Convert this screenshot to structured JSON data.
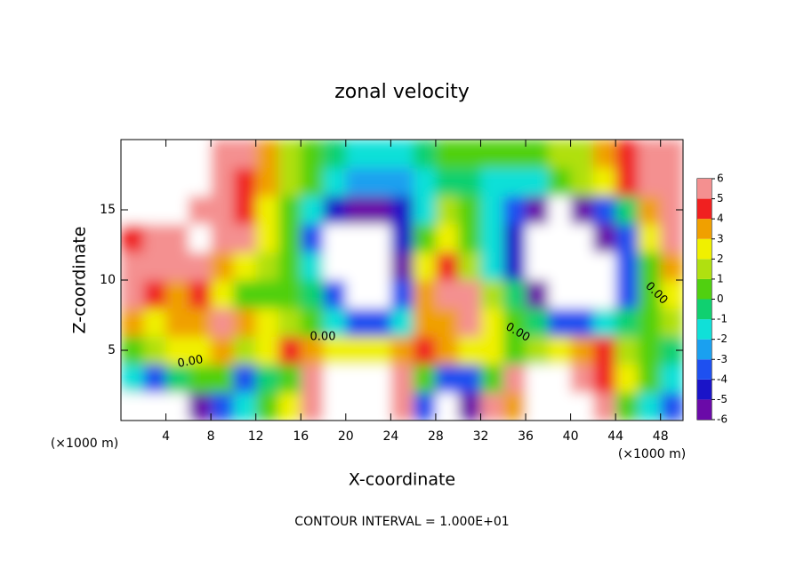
{
  "chart_data": {
    "type": "contour",
    "title": "zonal velocity",
    "x_label": "X-coordinate",
    "y_label": "Z-coordinate",
    "x_unit": "(×1000 m)",
    "y_unit": "(×1000 m)",
    "footer": "CONTOUR INTERVAL = 1.000E+01",
    "contour_labels": [
      "0.00",
      "0.00",
      "0.00",
      "0.00"
    ],
    "xlim": [
      0,
      50
    ],
    "ylim": [
      0,
      20
    ],
    "xticks": [
      4,
      8,
      12,
      16,
      20,
      24,
      28,
      32,
      36,
      40,
      44,
      48
    ],
    "yticks": [
      5,
      10,
      15
    ],
    "x": [
      1,
      3,
      5,
      7,
      9,
      11,
      13,
      15,
      17,
      19,
      21,
      23,
      25,
      27,
      29,
      31,
      33,
      35,
      37,
      39,
      41,
      43,
      45,
      47,
      49
    ],
    "y": [
      1,
      3,
      5,
      7,
      9,
      11,
      13,
      15,
      17,
      19
    ],
    "z": [
      [
        -8,
        -8,
        -8,
        -6,
        -4,
        -2,
        0,
        2,
        5,
        8,
        8,
        8,
        5,
        -4,
        -8,
        -6,
        5,
        3,
        8,
        8,
        8,
        6,
        0,
        -2,
        -4
      ],
      [
        -2,
        -4,
        -1,
        0,
        0,
        -4,
        -1,
        0,
        5,
        8,
        8,
        8,
        5,
        0,
        -4,
        -4,
        0,
        5,
        8,
        8,
        6,
        4,
        2,
        0,
        -2
      ],
      [
        0,
        1,
        2,
        2,
        3,
        1,
        2,
        4,
        3,
        2,
        2,
        2,
        3,
        4,
        3,
        2,
        2,
        0,
        1,
        2,
        3,
        4,
        1,
        0,
        -1
      ],
      [
        3,
        2,
        3,
        3,
        6,
        3,
        2,
        1,
        0,
        -2,
        -4,
        -4,
        -2,
        3,
        3,
        5,
        2,
        0,
        -1,
        -4,
        -4,
        -2,
        -1,
        0,
        1
      ],
      [
        5,
        4,
        3,
        4,
        2,
        0,
        0,
        0,
        -1,
        -4,
        -8,
        -8,
        -4,
        3,
        5,
        6,
        1,
        -1,
        -6,
        -8,
        -8,
        -8,
        -4,
        0,
        2
      ],
      [
        5,
        5,
        5,
        6,
        3,
        2,
        1,
        0,
        -2,
        -8,
        -8,
        -8,
        -6,
        2,
        4,
        1,
        -2,
        -5,
        -8,
        -8,
        -8,
        -8,
        -4,
        0,
        3
      ],
      [
        4,
        5,
        6,
        7,
        6,
        5,
        2,
        0,
        -4,
        -8,
        -8,
        -8,
        -5,
        0,
        2,
        0,
        -2,
        -5,
        -8,
        -8,
        -8,
        -6,
        -4,
        2,
        5
      ],
      [
        8,
        8,
        8,
        6,
        5,
        4,
        2,
        0,
        -2,
        -5,
        -6,
        -6,
        -5,
        -2,
        1,
        0,
        -2,
        -4,
        -6,
        -8,
        -6,
        -4,
        -1,
        3,
        5
      ],
      [
        8,
        8,
        8,
        8,
        5,
        4,
        3,
        1,
        0,
        -2,
        -3,
        -3,
        -3,
        -2,
        -1,
        -1,
        -2,
        -2,
        -2,
        0,
        1,
        2,
        4,
        5,
        6
      ],
      [
        8,
        8,
        8,
        8,
        5,
        5,
        3,
        1,
        0,
        -1,
        -2,
        -2,
        -2,
        -1,
        0,
        0,
        0,
        0,
        0,
        1,
        1,
        3,
        4,
        5,
        6
      ]
    ],
    "zlim": [
      -6,
      6
    ],
    "zticks": [
      6,
      5,
      4,
      3,
      2,
      1,
      0,
      -1,
      -2,
      -3,
      -4,
      -5,
      -6
    ],
    "colors": [
      "#6a0aa8",
      "#1a14c8",
      "#1e50f0",
      "#1aa0f0",
      "#10e0d8",
      "#10d070",
      "#50d010",
      "#b0e010",
      "#f0f000",
      "#f0a000",
      "#f02020",
      "#f49090"
    ]
  }
}
